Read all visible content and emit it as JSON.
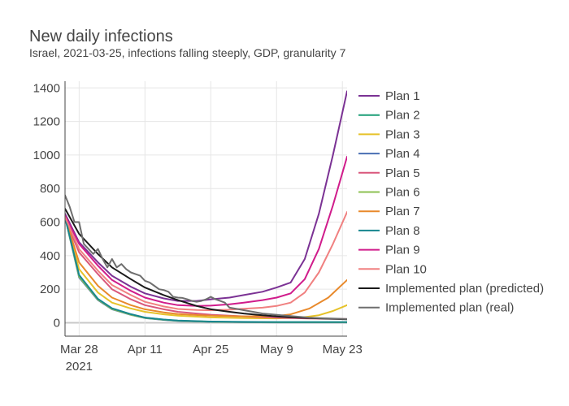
{
  "chart_data": {
    "type": "line",
    "title": "New daily infections",
    "subtitle": "Israel, 2021-03-25, infections falling steeply, GDP, granularity 7",
    "xlabel": "",
    "ylabel": "",
    "xlim": [
      "2021-03-25",
      "2021-05-24"
    ],
    "ylim": [
      -80,
      1440
    ],
    "x_ticks": [
      {
        "date": "2021-03-28",
        "label": "Mar 28",
        "sublabel": "2021"
      },
      {
        "date": "2021-04-11",
        "label": "Apr 11",
        "sublabel": ""
      },
      {
        "date": "2021-04-25",
        "label": "Apr 25",
        "sublabel": ""
      },
      {
        "date": "2021-05-09",
        "label": "May 9",
        "sublabel": ""
      },
      {
        "date": "2021-05-23",
        "label": "May 23",
        "sublabel": ""
      }
    ],
    "y_ticks": [
      0,
      200,
      400,
      600,
      800,
      1000,
      1200,
      1400
    ],
    "grid": true,
    "legend_position": "right",
    "series": [
      {
        "name": "Plan 1",
        "color": "#7b3294",
        "x": [
          "2021-03-25",
          "2021-03-28",
          "2021-04-01",
          "2021-04-04",
          "2021-04-08",
          "2021-04-11",
          "2021-04-15",
          "2021-04-18",
          "2021-04-22",
          "2021-04-25",
          "2021-04-29",
          "2021-05-02",
          "2021-05-06",
          "2021-05-09",
          "2021-05-12",
          "2021-05-15",
          "2021-05-18",
          "2021-05-21",
          "2021-05-24"
        ],
        "y": [
          650,
          480,
          360,
          280,
          215,
          175,
          145,
          130,
          130,
          140,
          150,
          165,
          185,
          210,
          240,
          380,
          650,
          1000,
          1380
        ]
      },
      {
        "name": "Plan 2",
        "color": "#1b9e77",
        "x": [
          "2021-03-25",
          "2021-03-28",
          "2021-04-01",
          "2021-04-04",
          "2021-04-08",
          "2021-04-11",
          "2021-04-15",
          "2021-04-18",
          "2021-04-25",
          "2021-05-02",
          "2021-05-09",
          "2021-05-16",
          "2021-05-24"
        ],
        "y": [
          630,
          280,
          140,
          85,
          50,
          30,
          18,
          12,
          6,
          4,
          3,
          3,
          3
        ]
      },
      {
        "name": "Plan 3",
        "color": "#e6c229",
        "x": [
          "2021-03-25",
          "2021-03-28",
          "2021-04-01",
          "2021-04-04",
          "2021-04-08",
          "2021-04-11",
          "2021-04-15",
          "2021-04-18",
          "2021-04-25",
          "2021-05-02",
          "2021-05-09",
          "2021-05-14",
          "2021-05-18",
          "2021-05-21",
          "2021-05-24"
        ],
        "y": [
          630,
          320,
          180,
          120,
          85,
          65,
          50,
          42,
          32,
          28,
          26,
          30,
          45,
          70,
          105
        ]
      },
      {
        "name": "Plan 4",
        "color": "#4a6fb3",
        "x": [
          "2021-03-25",
          "2021-03-28",
          "2021-04-01",
          "2021-04-04",
          "2021-04-08",
          "2021-04-11",
          "2021-04-15",
          "2021-04-18",
          "2021-04-25",
          "2021-05-02",
          "2021-05-09",
          "2021-05-16",
          "2021-05-24"
        ],
        "y": [
          630,
          270,
          135,
          80,
          47,
          28,
          17,
          11,
          5,
          3,
          2,
          2,
          2
        ]
      },
      {
        "name": "Plan 5",
        "color": "#d9577b",
        "x": [
          "2021-03-25",
          "2021-03-28",
          "2021-04-01",
          "2021-04-04",
          "2021-04-08",
          "2021-04-11",
          "2021-04-15",
          "2021-04-18",
          "2021-04-22",
          "2021-04-25",
          "2021-04-29",
          "2021-05-02",
          "2021-05-09",
          "2021-05-16",
          "2021-05-24"
        ],
        "y": [
          620,
          420,
          290,
          200,
          140,
          105,
          80,
          65,
          55,
          48,
          42,
          38,
          30,
          25,
          22
        ]
      },
      {
        "name": "Plan 6",
        "color": "#8cc152",
        "x": [
          "2021-03-25",
          "2021-03-28",
          "2021-04-01",
          "2021-04-04",
          "2021-04-08",
          "2021-04-11",
          "2021-04-15",
          "2021-04-18",
          "2021-04-25",
          "2021-05-02",
          "2021-05-09",
          "2021-05-16",
          "2021-05-24"
        ],
        "y": [
          630,
          275,
          138,
          82,
          48,
          29,
          18,
          12,
          6,
          4,
          3,
          3,
          3
        ]
      },
      {
        "name": "Plan 7",
        "color": "#e8892b",
        "x": [
          "2021-03-25",
          "2021-03-28",
          "2021-04-01",
          "2021-04-04",
          "2021-04-08",
          "2021-04-11",
          "2021-04-15",
          "2021-04-18",
          "2021-04-25",
          "2021-05-02",
          "2021-05-09",
          "2021-05-12",
          "2021-05-16",
          "2021-05-20",
          "2021-05-24"
        ],
        "y": [
          630,
          360,
          220,
          150,
          105,
          80,
          62,
          52,
          42,
          38,
          40,
          50,
          85,
          150,
          255
        ]
      },
      {
        "name": "Plan 8",
        "color": "#17868f",
        "x": [
          "2021-03-25",
          "2021-03-28",
          "2021-04-01",
          "2021-04-04",
          "2021-04-08",
          "2021-04-11",
          "2021-04-15",
          "2021-04-18",
          "2021-04-25",
          "2021-05-02",
          "2021-05-09",
          "2021-05-16",
          "2021-05-24"
        ],
        "y": [
          630,
          285,
          142,
          86,
          51,
          31,
          19,
          13,
          7,
          5,
          4,
          4,
          4
        ]
      },
      {
        "name": "Plan 9",
        "color": "#d01c8b",
        "x": [
          "2021-03-25",
          "2021-03-28",
          "2021-04-01",
          "2021-04-04",
          "2021-04-08",
          "2021-04-11",
          "2021-04-15",
          "2021-04-18",
          "2021-04-22",
          "2021-04-25",
          "2021-04-29",
          "2021-05-02",
          "2021-05-06",
          "2021-05-09",
          "2021-05-12",
          "2021-05-15",
          "2021-05-18",
          "2021-05-21",
          "2021-05-24"
        ],
        "y": [
          640,
          470,
          340,
          255,
          190,
          150,
          120,
          105,
          100,
          102,
          110,
          120,
          135,
          150,
          175,
          260,
          440,
          700,
          990
        ]
      },
      {
        "name": "Plan 10",
        "color": "#f08080",
        "x": [
          "2021-03-25",
          "2021-03-28",
          "2021-04-01",
          "2021-04-04",
          "2021-04-08",
          "2021-04-11",
          "2021-04-15",
          "2021-04-18",
          "2021-04-22",
          "2021-04-25",
          "2021-04-29",
          "2021-05-02",
          "2021-05-06",
          "2021-05-09",
          "2021-05-12",
          "2021-05-15",
          "2021-05-18",
          "2021-05-21",
          "2021-05-24"
        ],
        "y": [
          630,
          440,
          310,
          225,
          165,
          125,
          97,
          82,
          76,
          75,
          78,
          83,
          90,
          100,
          120,
          180,
          300,
          470,
          660
        ]
      },
      {
        "name": "Implemented plan (predicted)",
        "color": "#1a1a1a",
        "x": [
          "2021-03-25",
          "2021-03-28",
          "2021-04-01",
          "2021-04-04",
          "2021-04-08",
          "2021-04-11",
          "2021-04-15",
          "2021-04-18",
          "2021-04-22",
          "2021-04-25",
          "2021-04-29",
          "2021-05-02",
          "2021-05-06",
          "2021-05-09",
          "2021-05-12",
          "2021-05-16",
          "2021-05-20",
          "2021-05-24"
        ],
        "y": [
          680,
          530,
          410,
          330,
          260,
          210,
          165,
          135,
          100,
          80,
          65,
          55,
          45,
          38,
          33,
          28,
          24,
          20
        ]
      },
      {
        "name": "Implemented plan (real)",
        "color": "#6e6e6e",
        "x": [
          "2021-03-25",
          "2021-03-26",
          "2021-03-27",
          "2021-03-28",
          "2021-03-29",
          "2021-03-30",
          "2021-03-31",
          "2021-04-01",
          "2021-04-02",
          "2021-04-03",
          "2021-04-04",
          "2021-04-05",
          "2021-04-06",
          "2021-04-07",
          "2021-04-08",
          "2021-04-09",
          "2021-04-10",
          "2021-04-11",
          "2021-04-12",
          "2021-04-13",
          "2021-04-14",
          "2021-04-15",
          "2021-04-16",
          "2021-04-17",
          "2021-04-18",
          "2021-04-19",
          "2021-04-20",
          "2021-04-21",
          "2021-04-22",
          "2021-04-23",
          "2021-04-24",
          "2021-04-25",
          "2021-04-26",
          "2021-04-27",
          "2021-04-28",
          "2021-04-29",
          "2021-04-30",
          "2021-05-01",
          "2021-05-02",
          "2021-05-04",
          "2021-05-06",
          "2021-05-08",
          "2021-05-10",
          "2021-05-12",
          "2021-05-14",
          "2021-05-16",
          "2021-05-18",
          "2021-05-20",
          "2021-05-22",
          "2021-05-24"
        ],
        "y": [
          760,
          690,
          600,
          600,
          470,
          440,
          410,
          440,
          380,
          330,
          380,
          330,
          350,
          320,
          300,
          290,
          280,
          250,
          240,
          220,
          200,
          195,
          185,
          155,
          150,
          148,
          140,
          130,
          125,
          130,
          140,
          155,
          140,
          130,
          120,
          90,
          85,
          80,
          75,
          65,
          55,
          50,
          45,
          40,
          35,
          30,
          28,
          26,
          24,
          22
        ]
      }
    ]
  }
}
